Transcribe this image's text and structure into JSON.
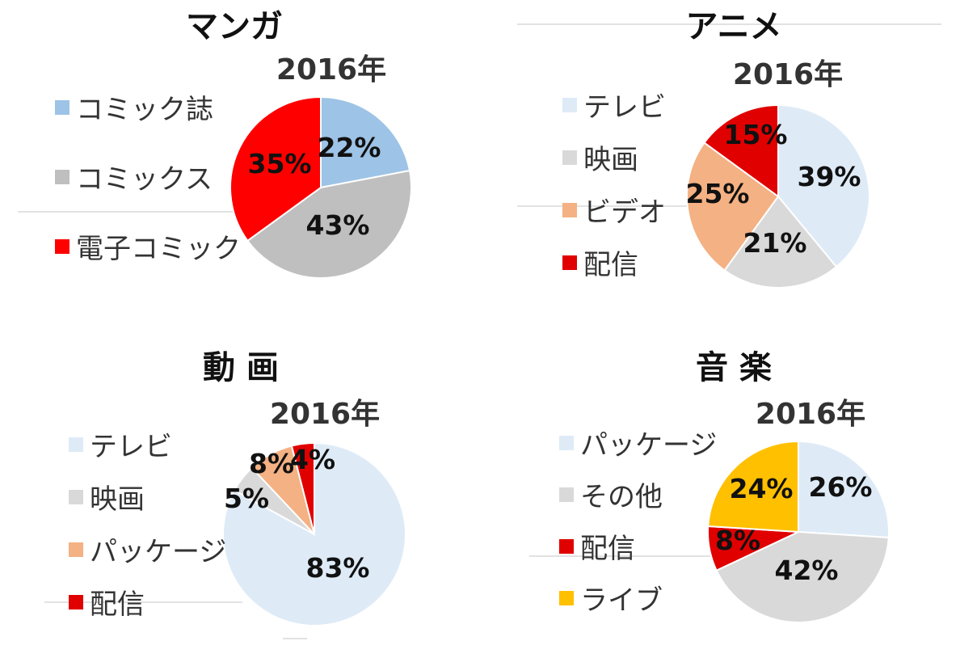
{
  "chart_data": [
    {
      "type": "pie",
      "title": "マンガ",
      "subtitle": "2016年",
      "labels": [
        "コミック誌",
        "コミックス",
        "電子コミック"
      ],
      "values": [
        22,
        43,
        35
      ],
      "value_labels": [
        "22%",
        "43%",
        "35%"
      ],
      "colors": [
        "#9dc3e6",
        "#bfbfbf",
        "#ff0000"
      ],
      "legend": "left"
    },
    {
      "type": "pie",
      "title": "アニメ",
      "subtitle": "2016年",
      "labels": [
        "テレビ",
        "映画",
        "ビデオ",
        "配信"
      ],
      "values": [
        39,
        21,
        25,
        15
      ],
      "value_labels": [
        "39%",
        "21%",
        "25%",
        "15%"
      ],
      "colors": [
        "#deebf7",
        "#d9d9d9",
        "#f4b183",
        "#e00000"
      ],
      "legend": "left"
    },
    {
      "type": "pie",
      "title": "動 画",
      "subtitle": "2016年",
      "labels": [
        "テレビ",
        "映画",
        "パッケージ",
        "配信"
      ],
      "values": [
        83,
        5,
        8,
        4
      ],
      "value_labels": [
        "83%",
        "5%",
        "8%",
        "4%"
      ],
      "colors": [
        "#deebf7",
        "#d9d9d9",
        "#f4b183",
        "#e00000"
      ],
      "legend": "left"
    },
    {
      "type": "pie",
      "title": "音 楽",
      "subtitle": "2016年",
      "labels": [
        "パッケージ",
        "その他",
        "配信",
        "ライブ"
      ],
      "values": [
        26,
        42,
        8,
        24
      ],
      "value_labels": [
        "26%",
        "42%",
        "8%",
        "24%"
      ],
      "colors": [
        "#deebf7",
        "#d9d9d9",
        "#e00000",
        "#ffc000"
      ],
      "legend": "left"
    }
  ]
}
